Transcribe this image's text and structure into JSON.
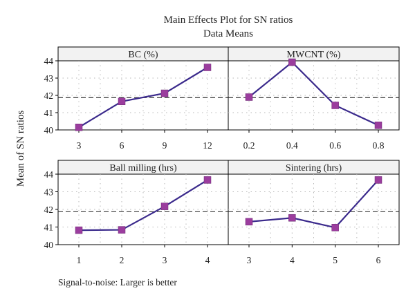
{
  "figure": {
    "title": "Main Effects Plot for SN ratios",
    "subtitle": "Data Means",
    "ylabel": "Mean of SN ratios",
    "footnote": "Signal-to-noise: Larger is better"
  },
  "colors": {
    "line": "#3b2a8c",
    "marker": "#9b3d9e",
    "reference": "#333333",
    "header_bg": "#f2f2f2",
    "grid": "#b8b8b8"
  },
  "chart_data": [
    {
      "type": "line",
      "title": "BC (%)",
      "categories": [
        "3",
        "6",
        "9",
        "12"
      ],
      "values": [
        40.15,
        41.65,
        42.12,
        43.62
      ],
      "ylim": [
        40,
        44
      ],
      "yticks": [
        40,
        41,
        42,
        43,
        44
      ],
      "reference_line": 41.87,
      "grid": true
    },
    {
      "type": "line",
      "title": "MWCNT (%)",
      "categories": [
        "0.2",
        "0.4",
        "0.6",
        "0.8"
      ],
      "values": [
        41.9,
        43.92,
        41.42,
        40.27
      ],
      "ylim": [
        40,
        44
      ],
      "yticks": [
        40,
        41,
        42,
        43,
        44
      ],
      "reference_line": 41.87,
      "grid": true
    },
    {
      "type": "line",
      "title": "Ball milling (hrs)",
      "categories": [
        "1",
        "2",
        "3",
        "4"
      ],
      "values": [
        40.82,
        40.84,
        42.17,
        43.67
      ],
      "ylim": [
        40,
        44
      ],
      "yticks": [
        40,
        41,
        42,
        43,
        44
      ],
      "reference_line": 41.87,
      "grid": true
    },
    {
      "type": "line",
      "title": "Sintering (hrs)",
      "categories": [
        "3",
        "4",
        "5",
        "6"
      ],
      "values": [
        41.3,
        41.52,
        40.97,
        43.67
      ],
      "ylim": [
        40,
        44
      ],
      "yticks": [
        40,
        41,
        42,
        43,
        44
      ],
      "reference_line": 41.87,
      "grid": true
    }
  ]
}
